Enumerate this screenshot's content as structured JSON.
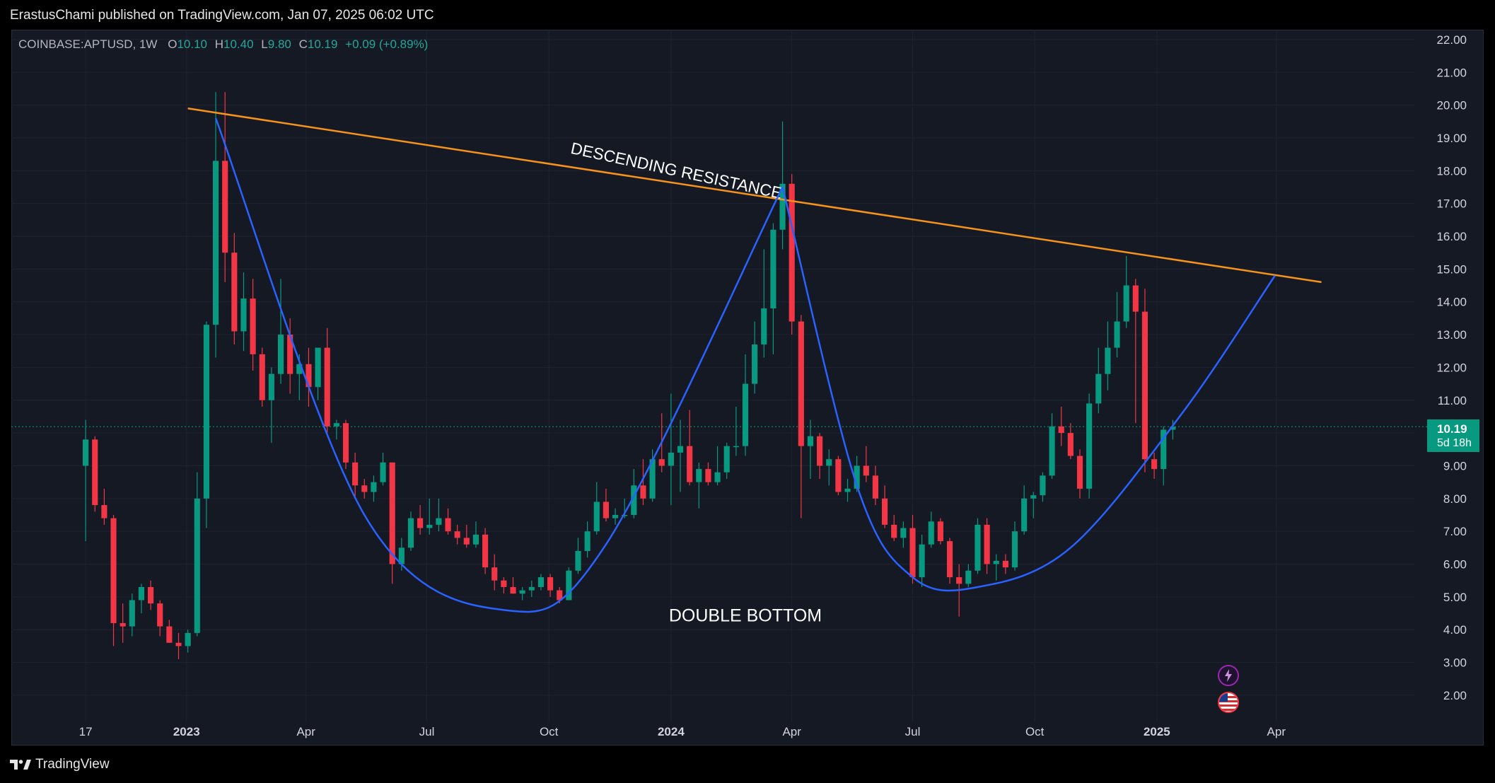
{
  "header": {
    "publisher_text": "ErastusChami published on TradingView.com, Jan 07, 2025 06:02 UTC"
  },
  "legend": {
    "symbol": "COINBASE:APTUSD, 1W",
    "open_label": "O",
    "open": "10.10",
    "high_label": "H",
    "high": "10.40",
    "low_label": "L",
    "low": "9.80",
    "close_label": "C",
    "close": "10.19",
    "change": "+0.09 (+0.89%)"
  },
  "price_badge": {
    "price": "10.19",
    "countdown": "5d 18h"
  },
  "footer": {
    "brand": "TradingView"
  },
  "icons": [
    "tv-logo-icon",
    "lightning-icon",
    "us-flag-icon"
  ],
  "colors": {
    "background": "#151924",
    "up": "#089981",
    "down": "#f23645",
    "resistance": "#f7931a",
    "curve": "#2962ff",
    "text": "#d1d4dc"
  },
  "chart_data": {
    "type": "candlestick",
    "symbol": "COINBASE:APTUSD",
    "interval": "1W",
    "ylim": [
      1.2,
      22.3
    ],
    "y_ticks": [
      "2.00",
      "3.00",
      "4.00",
      "5.00",
      "6.00",
      "7.00",
      "8.00",
      "9.00",
      "10.00",
      "11.00",
      "12.00",
      "13.00",
      "14.00",
      "15.00",
      "16.00",
      "17.00",
      "18.00",
      "19.00",
      "20.00",
      "21.00",
      "22.00"
    ],
    "x_ticks": [
      {
        "date": "2022-10-17",
        "label": "17"
      },
      {
        "date": "2023-01-01",
        "label": "2023"
      },
      {
        "date": "2023-04-01",
        "label": "Apr"
      },
      {
        "date": "2023-07-01",
        "label": "Jul"
      },
      {
        "date": "2023-10-01",
        "label": "Oct"
      },
      {
        "date": "2024-01-01",
        "label": "2024"
      },
      {
        "date": "2024-04-01",
        "label": "Apr"
      },
      {
        "date": "2024-07-01",
        "label": "Jul"
      },
      {
        "date": "2024-10-01",
        "label": "Oct"
      },
      {
        "date": "2025-01-01",
        "label": "2025"
      },
      {
        "date": "2025-04-01",
        "label": "Apr"
      }
    ],
    "x_range": [
      "2022-08-22",
      "2025-07-14"
    ],
    "candles": [
      {
        "d": "2022-10-17",
        "o": 9.0,
        "h": 10.4,
        "l": 6.7,
        "c": 9.8
      },
      {
        "d": "2022-10-24",
        "o": 9.8,
        "h": 9.9,
        "l": 7.6,
        "c": 7.8
      },
      {
        "d": "2022-10-31",
        "o": 7.8,
        "h": 8.3,
        "l": 7.2,
        "c": 7.4
      },
      {
        "d": "2022-11-07",
        "o": 7.4,
        "h": 7.5,
        "l": 3.5,
        "c": 4.2
      },
      {
        "d": "2022-11-14",
        "o": 4.2,
        "h": 4.8,
        "l": 3.6,
        "c": 4.1
      },
      {
        "d": "2022-11-21",
        "o": 4.1,
        "h": 5.1,
        "l": 3.8,
        "c": 4.9
      },
      {
        "d": "2022-11-28",
        "o": 4.9,
        "h": 5.4,
        "l": 4.5,
        "c": 5.3
      },
      {
        "d": "2022-12-05",
        "o": 5.3,
        "h": 5.5,
        "l": 4.6,
        "c": 4.8
      },
      {
        "d": "2022-12-12",
        "o": 4.8,
        "h": 4.9,
        "l": 3.8,
        "c": 4.1
      },
      {
        "d": "2022-12-19",
        "o": 4.1,
        "h": 4.3,
        "l": 3.6,
        "c": 3.6
      },
      {
        "d": "2022-12-26",
        "o": 3.6,
        "h": 3.9,
        "l": 3.1,
        "c": 3.5
      },
      {
        "d": "2023-01-02",
        "o": 3.5,
        "h": 4.0,
        "l": 3.3,
        "c": 3.9
      },
      {
        "d": "2023-01-09",
        "o": 3.9,
        "h": 8.8,
        "l": 3.8,
        "c": 8.0
      },
      {
        "d": "2023-01-16",
        "o": 8.0,
        "h": 13.4,
        "l": 7.1,
        "c": 13.3
      },
      {
        "d": "2023-01-23",
        "o": 13.3,
        "h": 20.4,
        "l": 12.3,
        "c": 18.3
      },
      {
        "d": "2023-01-30",
        "o": 18.3,
        "h": 20.4,
        "l": 14.6,
        "c": 15.5
      },
      {
        "d": "2023-02-06",
        "o": 15.5,
        "h": 16.1,
        "l": 12.7,
        "c": 13.1
      },
      {
        "d": "2023-02-13",
        "o": 13.1,
        "h": 14.9,
        "l": 12.5,
        "c": 14.1
      },
      {
        "d": "2023-02-20",
        "o": 14.1,
        "h": 14.7,
        "l": 11.9,
        "c": 12.4
      },
      {
        "d": "2023-02-27",
        "o": 12.4,
        "h": 12.6,
        "l": 10.8,
        "c": 11.0
      },
      {
        "d": "2023-03-06",
        "o": 11.0,
        "h": 12.0,
        "l": 9.7,
        "c": 11.8
      },
      {
        "d": "2023-03-13",
        "o": 11.8,
        "h": 14.7,
        "l": 11.5,
        "c": 13.0
      },
      {
        "d": "2023-03-20",
        "o": 13.0,
        "h": 13.5,
        "l": 11.2,
        "c": 11.8
      },
      {
        "d": "2023-03-27",
        "o": 11.8,
        "h": 12.4,
        "l": 11.0,
        "c": 12.1
      },
      {
        "d": "2023-04-03",
        "o": 12.1,
        "h": 12.6,
        "l": 10.8,
        "c": 11.4
      },
      {
        "d": "2023-04-10",
        "o": 11.4,
        "h": 12.4,
        "l": 11.0,
        "c": 12.6
      },
      {
        "d": "2023-04-17",
        "o": 12.6,
        "h": 13.2,
        "l": 10.0,
        "c": 10.2
      },
      {
        "d": "2023-04-24",
        "o": 10.2,
        "h": 10.4,
        "l": 9.8,
        "c": 10.3
      },
      {
        "d": "2023-05-01",
        "o": 10.3,
        "h": 10.4,
        "l": 8.9,
        "c": 9.1
      },
      {
        "d": "2023-05-08",
        "o": 9.1,
        "h": 9.4,
        "l": 8.0,
        "c": 8.4
      },
      {
        "d": "2023-05-15",
        "o": 8.4,
        "h": 8.6,
        "l": 8.0,
        "c": 8.2
      },
      {
        "d": "2023-05-22",
        "o": 8.2,
        "h": 8.7,
        "l": 7.9,
        "c": 8.5
      },
      {
        "d": "2023-05-29",
        "o": 8.5,
        "h": 9.4,
        "l": 8.4,
        "c": 9.1
      },
      {
        "d": "2023-06-05",
        "o": 9.1,
        "h": 9.1,
        "l": 5.4,
        "c": 6.0
      },
      {
        "d": "2023-06-12",
        "o": 6.0,
        "h": 6.8,
        "l": 5.8,
        "c": 6.5
      },
      {
        "d": "2023-06-19",
        "o": 6.5,
        "h": 7.6,
        "l": 6.4,
        "c": 7.4
      },
      {
        "d": "2023-06-26",
        "o": 7.4,
        "h": 7.8,
        "l": 6.9,
        "c": 7.1
      },
      {
        "d": "2023-07-03",
        "o": 7.1,
        "h": 8.0,
        "l": 6.9,
        "c": 7.2
      },
      {
        "d": "2023-07-10",
        "o": 7.2,
        "h": 8.0,
        "l": 7.0,
        "c": 7.4
      },
      {
        "d": "2023-07-17",
        "o": 7.4,
        "h": 7.7,
        "l": 6.9,
        "c": 7.0
      },
      {
        "d": "2023-07-24",
        "o": 7.0,
        "h": 7.2,
        "l": 6.6,
        "c": 6.8
      },
      {
        "d": "2023-07-31",
        "o": 6.8,
        "h": 7.2,
        "l": 6.5,
        "c": 6.6
      },
      {
        "d": "2023-08-07",
        "o": 6.6,
        "h": 7.3,
        "l": 6.5,
        "c": 6.9
      },
      {
        "d": "2023-08-14",
        "o": 6.9,
        "h": 7.1,
        "l": 5.7,
        "c": 5.9
      },
      {
        "d": "2023-08-21",
        "o": 5.9,
        "h": 6.3,
        "l": 5.2,
        "c": 5.5
      },
      {
        "d": "2023-08-28",
        "o": 5.5,
        "h": 5.6,
        "l": 5.1,
        "c": 5.3
      },
      {
        "d": "2023-09-04",
        "o": 5.3,
        "h": 5.6,
        "l": 5.1,
        "c": 5.1
      },
      {
        "d": "2023-09-11",
        "o": 5.1,
        "h": 5.3,
        "l": 4.9,
        "c": 5.2
      },
      {
        "d": "2023-09-18",
        "o": 5.2,
        "h": 5.5,
        "l": 5.0,
        "c": 5.3
      },
      {
        "d": "2023-09-25",
        "o": 5.3,
        "h": 5.7,
        "l": 5.2,
        "c": 5.6
      },
      {
        "d": "2023-10-02",
        "o": 5.6,
        "h": 5.7,
        "l": 5.0,
        "c": 5.2
      },
      {
        "d": "2023-10-09",
        "o": 5.2,
        "h": 5.3,
        "l": 4.8,
        "c": 4.9
      },
      {
        "d": "2023-10-16",
        "o": 4.9,
        "h": 5.9,
        "l": 4.9,
        "c": 5.8
      },
      {
        "d": "2023-10-23",
        "o": 5.8,
        "h": 6.8,
        "l": 5.7,
        "c": 6.4
      },
      {
        "d": "2023-10-30",
        "o": 6.4,
        "h": 7.3,
        "l": 6.2,
        "c": 7.0
      },
      {
        "d": "2023-11-06",
        "o": 7.0,
        "h": 8.5,
        "l": 6.9,
        "c": 7.9
      },
      {
        "d": "2023-11-13",
        "o": 7.9,
        "h": 8.3,
        "l": 7.3,
        "c": 7.4
      },
      {
        "d": "2023-11-20",
        "o": 7.4,
        "h": 7.7,
        "l": 7.2,
        "c": 7.5
      },
      {
        "d": "2023-11-27",
        "o": 7.5,
        "h": 8.0,
        "l": 7.4,
        "c": 7.5
      },
      {
        "d": "2023-12-04",
        "o": 7.5,
        "h": 8.9,
        "l": 7.4,
        "c": 8.4
      },
      {
        "d": "2023-12-11",
        "o": 8.4,
        "h": 9.2,
        "l": 7.8,
        "c": 8.0
      },
      {
        "d": "2023-12-18",
        "o": 8.0,
        "h": 9.5,
        "l": 7.9,
        "c": 9.2
      },
      {
        "d": "2023-12-25",
        "o": 9.2,
        "h": 10.6,
        "l": 8.8,
        "c": 9.0
      },
      {
        "d": "2024-01-01",
        "o": 9.0,
        "h": 11.2,
        "l": 7.8,
        "c": 9.4
      },
      {
        "d": "2024-01-08",
        "o": 9.4,
        "h": 10.4,
        "l": 8.2,
        "c": 9.6
      },
      {
        "d": "2024-01-15",
        "o": 9.6,
        "h": 10.7,
        "l": 8.4,
        "c": 8.5
      },
      {
        "d": "2024-01-22",
        "o": 8.5,
        "h": 9.1,
        "l": 7.7,
        "c": 8.9
      },
      {
        "d": "2024-01-29",
        "o": 8.9,
        "h": 9.1,
        "l": 8.4,
        "c": 8.5
      },
      {
        "d": "2024-02-05",
        "o": 8.5,
        "h": 9.6,
        "l": 8.4,
        "c": 8.8
      },
      {
        "d": "2024-02-12",
        "o": 8.8,
        "h": 9.7,
        "l": 8.6,
        "c": 9.6
      },
      {
        "d": "2024-02-19",
        "o": 9.6,
        "h": 10.8,
        "l": 9.3,
        "c": 9.6
      },
      {
        "d": "2024-02-26",
        "o": 9.6,
        "h": 12.4,
        "l": 9.3,
        "c": 11.5
      },
      {
        "d": "2024-03-04",
        "o": 11.5,
        "h": 13.4,
        "l": 11.2,
        "c": 12.7
      },
      {
        "d": "2024-03-11",
        "o": 12.7,
        "h": 15.6,
        "l": 12.3,
        "c": 13.8
      },
      {
        "d": "2024-03-18",
        "o": 13.8,
        "h": 16.4,
        "l": 12.4,
        "c": 16.2
      },
      {
        "d": "2024-03-25",
        "o": 16.2,
        "h": 19.5,
        "l": 15.6,
        "c": 17.6
      },
      {
        "d": "2024-04-01",
        "o": 17.6,
        "h": 17.9,
        "l": 13.0,
        "c": 13.4
      },
      {
        "d": "2024-04-08",
        "o": 13.4,
        "h": 13.6,
        "l": 7.4,
        "c": 9.6
      },
      {
        "d": "2024-04-15",
        "o": 9.6,
        "h": 10.4,
        "l": 8.6,
        "c": 9.9
      },
      {
        "d": "2024-04-22",
        "o": 9.9,
        "h": 10.0,
        "l": 8.6,
        "c": 9.0
      },
      {
        "d": "2024-04-29",
        "o": 9.0,
        "h": 9.5,
        "l": 8.4,
        "c": 9.2
      },
      {
        "d": "2024-05-06",
        "o": 9.2,
        "h": 9.3,
        "l": 8.1,
        "c": 8.2
      },
      {
        "d": "2024-05-13",
        "o": 8.2,
        "h": 8.6,
        "l": 7.9,
        "c": 8.3
      },
      {
        "d": "2024-05-20",
        "o": 8.3,
        "h": 9.3,
        "l": 8.2,
        "c": 9.0
      },
      {
        "d": "2024-05-27",
        "o": 9.0,
        "h": 9.6,
        "l": 8.5,
        "c": 8.7
      },
      {
        "d": "2024-06-03",
        "o": 8.7,
        "h": 9.0,
        "l": 7.8,
        "c": 8.0
      },
      {
        "d": "2024-06-10",
        "o": 8.0,
        "h": 8.4,
        "l": 7.1,
        "c": 7.2
      },
      {
        "d": "2024-06-17",
        "o": 7.2,
        "h": 7.5,
        "l": 6.7,
        "c": 6.8
      },
      {
        "d": "2024-06-24",
        "o": 6.8,
        "h": 7.3,
        "l": 6.5,
        "c": 7.1
      },
      {
        "d": "2024-07-01",
        "o": 7.1,
        "h": 7.5,
        "l": 5.4,
        "c": 5.6
      },
      {
        "d": "2024-07-08",
        "o": 5.6,
        "h": 6.9,
        "l": 5.3,
        "c": 6.6
      },
      {
        "d": "2024-07-15",
        "o": 6.6,
        "h": 7.6,
        "l": 6.5,
        "c": 7.3
      },
      {
        "d": "2024-07-22",
        "o": 7.3,
        "h": 7.4,
        "l": 6.6,
        "c": 6.7
      },
      {
        "d": "2024-07-29",
        "o": 6.7,
        "h": 6.8,
        "l": 5.4,
        "c": 5.6
      },
      {
        "d": "2024-08-05",
        "o": 5.6,
        "h": 6.0,
        "l": 4.4,
        "c": 5.4
      },
      {
        "d": "2024-08-12",
        "o": 5.4,
        "h": 6.0,
        "l": 5.3,
        "c": 5.8
      },
      {
        "d": "2024-08-19",
        "o": 5.8,
        "h": 7.4,
        "l": 5.7,
        "c": 7.2
      },
      {
        "d": "2024-08-26",
        "o": 7.2,
        "h": 7.4,
        "l": 5.7,
        "c": 6.0
      },
      {
        "d": "2024-09-02",
        "o": 6.0,
        "h": 6.3,
        "l": 5.5,
        "c": 6.1
      },
      {
        "d": "2024-09-09",
        "o": 6.1,
        "h": 6.3,
        "l": 5.7,
        "c": 5.9
      },
      {
        "d": "2024-09-16",
        "o": 5.9,
        "h": 7.3,
        "l": 5.8,
        "c": 7.0
      },
      {
        "d": "2024-09-23",
        "o": 7.0,
        "h": 8.4,
        "l": 6.9,
        "c": 8.0
      },
      {
        "d": "2024-09-30",
        "o": 8.0,
        "h": 8.2,
        "l": 7.4,
        "c": 8.1
      },
      {
        "d": "2024-10-07",
        "o": 8.1,
        "h": 8.8,
        "l": 7.9,
        "c": 8.7
      },
      {
        "d": "2024-10-14",
        "o": 8.7,
        "h": 10.6,
        "l": 8.6,
        "c": 10.2
      },
      {
        "d": "2024-10-21",
        "o": 10.2,
        "h": 10.8,
        "l": 9.6,
        "c": 10.0
      },
      {
        "d": "2024-10-28",
        "o": 10.0,
        "h": 10.3,
        "l": 9.2,
        "c": 9.3
      },
      {
        "d": "2024-11-04",
        "o": 9.3,
        "h": 9.5,
        "l": 8.0,
        "c": 8.3
      },
      {
        "d": "2024-11-11",
        "o": 8.3,
        "h": 11.2,
        "l": 8.0,
        "c": 10.9
      },
      {
        "d": "2024-11-18",
        "o": 10.9,
        "h": 12.6,
        "l": 10.6,
        "c": 11.8
      },
      {
        "d": "2024-11-25",
        "o": 11.8,
        "h": 13.4,
        "l": 11.3,
        "c": 12.6
      },
      {
        "d": "2024-12-02",
        "o": 12.6,
        "h": 14.3,
        "l": 12.3,
        "c": 13.4
      },
      {
        "d": "2024-12-09",
        "o": 13.4,
        "h": 15.4,
        "l": 13.2,
        "c": 14.5
      },
      {
        "d": "2024-12-16",
        "o": 14.5,
        "h": 14.7,
        "l": 10.3,
        "c": 13.7
      },
      {
        "d": "2024-12-23",
        "o": 13.7,
        "h": 14.4,
        "l": 8.8,
        "c": 9.2
      },
      {
        "d": "2024-12-30",
        "o": 9.2,
        "h": 9.4,
        "l": 8.6,
        "c": 8.9
      },
      {
        "d": "2025-01-06",
        "o": 8.9,
        "h": 10.2,
        "l": 8.4,
        "c": 10.1
      },
      {
        "d": "2025-01-13",
        "o": 10.1,
        "h": 10.4,
        "l": 9.8,
        "c": 10.19
      }
    ],
    "current_price": 10.19,
    "annotations": [
      {
        "text": "DESCENDING RESISTANCE",
        "type": "trendline",
        "color": "#f7931a",
        "points": [
          {
            "d": "2023-01-02",
            "p": 19.9
          },
          {
            "d": "2025-05-05",
            "p": 14.6
          }
        ]
      },
      {
        "text": "DOUBLE BOTTOM",
        "type": "label",
        "anchor": {
          "d": "2024-02-26",
          "p": 4.25
        }
      },
      {
        "type": "curve",
        "color": "#2962ff",
        "points": [
          {
            "d": "2023-01-23",
            "p": 19.6
          },
          {
            "d": "2023-05-15",
            "p": 7.5
          },
          {
            "d": "2023-08-28",
            "p": 4.6
          },
          {
            "d": "2023-11-13",
            "p": 6.6
          },
          {
            "d": "2024-03-25",
            "p": 17.5
          }
        ]
      },
      {
        "type": "curve",
        "color": "#2962ff",
        "points": [
          {
            "d": "2024-03-25",
            "p": 17.5
          },
          {
            "d": "2024-05-20",
            "p": 8.4
          },
          {
            "d": "2024-07-01",
            "p": 5.6
          },
          {
            "d": "2024-08-19",
            "p": 5.3
          },
          {
            "d": "2024-10-28",
            "p": 6.5
          },
          {
            "d": "2025-01-20",
            "p": 10.6
          },
          {
            "d": "2025-03-31",
            "p": 14.8
          }
        ]
      }
    ]
  }
}
